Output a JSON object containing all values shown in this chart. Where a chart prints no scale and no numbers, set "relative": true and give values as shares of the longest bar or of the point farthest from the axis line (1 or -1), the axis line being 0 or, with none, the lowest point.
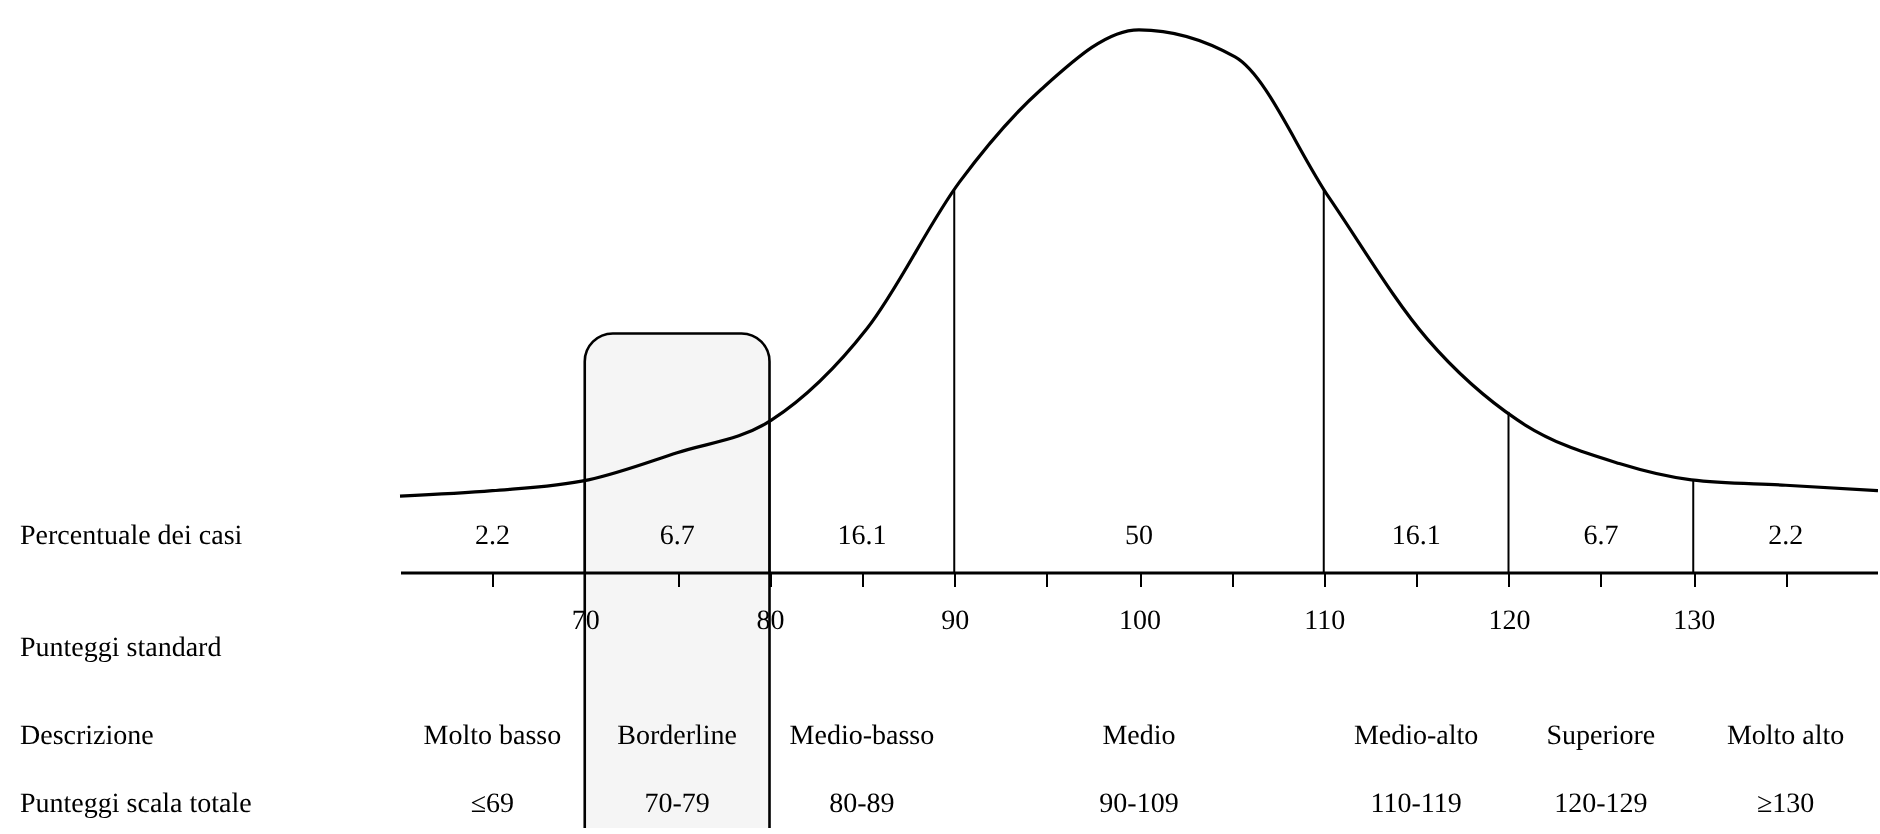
{
  "chart_data": {
    "type": "line",
    "relative": true,
    "x": [
      60,
      65,
      70.2,
      75,
      80.1,
      85.3,
      90.3,
      94.7,
      100,
      105.2,
      110.3,
      115.6,
      120.5,
      126,
      129.9,
      135,
      140
    ],
    "series": [
      {
        "color": "#000000",
        "values": [
          0.14,
          0.15,
          0.17,
          0.22,
          0.28,
          0.45,
          0.72,
          0.89,
          1,
          0.95,
          0.69,
          0.43,
          0.28,
          0.2,
          0.17,
          0.16,
          0.15
        ]
      }
    ],
    "xlim": [
      60,
      140
    ],
    "xticks": [
      {
        "value": 65,
        "label": null
      },
      70,
      {
        "value": 75,
        "label": null
      },
      80,
      {
        "value": 85,
        "label": null
      },
      90,
      {
        "value": 95,
        "label": null
      },
      100,
      {
        "value": 105,
        "label": null
      },
      110,
      {
        "value": 115,
        "label": null
      },
      120,
      {
        "value": 125,
        "label": null
      },
      130,
      {
        "value": 135,
        "label": null
      }
    ],
    "ref_lines": [
      {
        "axis": "x",
        "value": 70
      },
      {
        "axis": "x",
        "value": 80
      },
      {
        "axis": "x",
        "value": 90
      },
      {
        "axis": "x",
        "value": 110
      },
      {
        "axis": "x",
        "value": 120
      },
      {
        "axis": "x",
        "value": 130
      }
    ],
    "bands": [
      {
        "axis": "x",
        "from": 70,
        "to": 80,
        "color": "#000000"
      }
    ],
    "annotations": [
      "Percentuale dei casi",
      "2.2",
      "6.7",
      "16.1",
      "50",
      "16.1",
      "6.7",
      "2.2",
      "Punteggi standard",
      "Descrizione",
      "Molto basso",
      "Borderline",
      "Medio-basso",
      "Medio",
      "Medio-alto",
      "Superiore",
      "Molto alto",
      "Punteggi scala totale",
      "≤69",
      "70-79",
      "80-89",
      "90-109",
      "110-119",
      "120-129",
      "≥130"
    ]
  }
}
